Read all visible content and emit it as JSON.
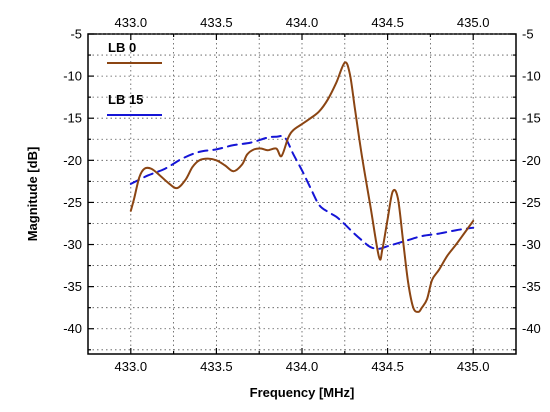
{
  "chart_data": {
    "type": "line",
    "xlabel": "Frequency [MHz]",
    "ylabel": "Magnitude [dB]",
    "xlim": [
      432.75,
      435.25
    ],
    "ylim": [
      -43,
      -5
    ],
    "xticks": [
      433.0,
      433.5,
      434.0,
      434.5,
      435.0
    ],
    "xtick_labels": [
      "433.0",
      "433.5",
      "434.0",
      "434.5",
      "435.0"
    ],
    "yticks": [
      -5,
      -10,
      -15,
      -20,
      -25,
      -30,
      -35,
      -40
    ],
    "ytick_labels": [
      "-5",
      "-10",
      "-15",
      "-20",
      "-25",
      "-30",
      "-35",
      "-40"
    ],
    "ticks_mirrored_top_right": true,
    "grid": true,
    "grid_style": "dotted",
    "legend_position": "top-left",
    "series": [
      {
        "name": "LB 0",
        "color": "#8B4513",
        "style": "solid",
        "x": [
          433.0,
          433.02,
          433.05,
          433.08,
          433.12,
          433.17,
          433.22,
          433.27,
          433.32,
          433.36,
          433.4,
          433.45,
          433.5,
          433.55,
          433.6,
          433.65,
          433.68,
          433.72,
          433.76,
          433.8,
          433.85,
          433.88,
          433.92,
          433.95,
          434.0,
          434.05,
          434.1,
          434.15,
          434.2,
          434.25,
          434.28,
          434.31,
          434.35,
          434.4,
          434.45,
          434.47,
          434.5,
          434.53,
          434.56,
          434.59,
          434.62,
          434.65,
          434.68,
          434.7,
          434.73,
          434.76,
          434.8,
          434.85,
          434.9,
          434.95,
          435.0
        ],
        "y": [
          -26.0,
          -24.5,
          -22.0,
          -21.0,
          -21.0,
          -21.8,
          -22.7,
          -23.3,
          -22.3,
          -20.8,
          -20.0,
          -19.8,
          -20.0,
          -20.6,
          -21.3,
          -20.5,
          -19.3,
          -18.7,
          -18.6,
          -18.8,
          -18.6,
          -19.5,
          -17.3,
          -16.4,
          -15.7,
          -15.0,
          -14.2,
          -12.8,
          -10.8,
          -8.4,
          -9.8,
          -14.0,
          -19.5,
          -25.5,
          -31.5,
          -30.5,
          -27.0,
          -23.7,
          -24.5,
          -29.5,
          -34.5,
          -37.5,
          -38.0,
          -37.5,
          -36.5,
          -34.2,
          -33.0,
          -31.3,
          -30.0,
          -28.6,
          -27.2
        ]
      },
      {
        "name": "LB 15",
        "color": "#1515D6",
        "style": "dashed",
        "x": [
          433.0,
          433.1,
          433.2,
          433.3,
          433.4,
          433.5,
          433.6,
          433.7,
          433.8,
          433.85,
          433.9,
          433.95,
          434.0,
          434.05,
          434.1,
          434.15,
          434.2,
          434.25,
          434.3,
          434.35,
          434.4,
          434.45,
          434.5,
          434.6,
          434.7,
          434.8,
          434.9,
          435.0
        ],
        "y": [
          -22.8,
          -21.8,
          -21.0,
          -19.8,
          -19.0,
          -18.7,
          -18.2,
          -17.9,
          -17.3,
          -17.2,
          -17.3,
          -19.3,
          -21.2,
          -23.3,
          -25.3,
          -26.1,
          -26.7,
          -27.6,
          -28.6,
          -29.5,
          -30.3,
          -30.5,
          -30.2,
          -29.6,
          -29.0,
          -28.7,
          -28.3,
          -28.0
        ]
      }
    ]
  }
}
